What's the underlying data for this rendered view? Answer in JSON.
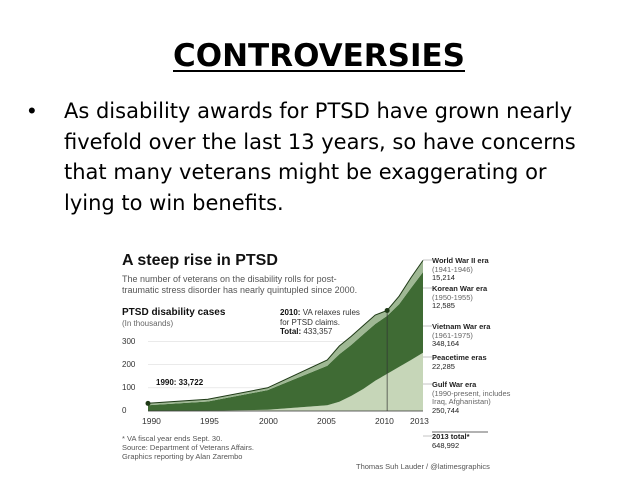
{
  "slide": {
    "title": "CONTROVERSIES",
    "bullet": "As disability awards for PTSD have grown nearly fivefold over the last 13 years, so have concerns that many veterans might be exaggerating or lying to win benefits."
  },
  "figure": {
    "title": "A steep rise in PTSD",
    "subtitle": "The number of veterans on the disability rolls for post-traumatic stress disorder has nearly quintupled since 2000.",
    "chart_title": "PTSD disability cases",
    "chart_unit": "(In thousands)",
    "annotations": {
      "start": "1990: 33,722",
      "rule_change_bold": "2010:",
      "rule_change_text": "VA relaxes rules for PTSD claims.",
      "total_label": "Total:",
      "total_value": "433,357"
    },
    "eras": [
      {
        "name": "World War II era",
        "years": "(1941-1946)",
        "value": "15,214"
      },
      {
        "name": "Korean War era",
        "years": "(1950-1955)",
        "value": "12,585"
      },
      {
        "name": "Vietnam War era",
        "years": "(1961-1975)",
        "value": "348,164"
      },
      {
        "name": "Peacetime eras",
        "years": "",
        "value": "22,285"
      },
      {
        "name": "Gulf War era",
        "years": "(1990-present, includes Iraq, Afghanistan)",
        "value": "250,744"
      },
      {
        "name": "2013 total*",
        "years": "",
        "value": "648,992"
      }
    ],
    "footnotes": [
      "* VA fiscal year ends Sept. 30.",
      "Source: Department of Veterans Affairs.",
      "Graphics reporting by Alan Zarembo"
    ],
    "credit": "Thomas Suh Lauder / @latimesgraphics",
    "colors": {
      "gulf": "#c6d6b8",
      "vietnam": "#3f6b34",
      "other": "#9fb894"
    }
  },
  "chart_data": {
    "type": "area",
    "x": [
      1990,
      1995,
      2000,
      2005,
      2006,
      2007,
      2008,
      2009,
      2010,
      2011,
      2012,
      2013
    ],
    "series": [
      {
        "name": "Gulf War era",
        "values": [
          0,
          1,
          5,
          25,
          40,
          65,
          95,
          130,
          160,
          190,
          220,
          250.7
        ]
      },
      {
        "name": "Vietnam War era",
        "values": [
          25,
          40,
          85,
          170,
          205,
          220,
          235,
          245,
          250,
          270,
          310,
          348.2
        ]
      },
      {
        "name": "Other eras",
        "values": [
          8,
          10,
          10,
          25,
          35,
          37,
          38,
          39,
          23,
          35,
          45,
          50.1
        ]
      }
    ],
    "title": "PTSD disability cases",
    "ylabel": "(In thousands)",
    "xticks": [
      "1990",
      "1995",
      "2000",
      "2005",
      "2010",
      "2013"
    ],
    "yticks": [
      "0",
      "100",
      "200",
      "300"
    ],
    "ylim": [
      0,
      650
    ],
    "xlim": [
      1990,
      2013
    ]
  }
}
